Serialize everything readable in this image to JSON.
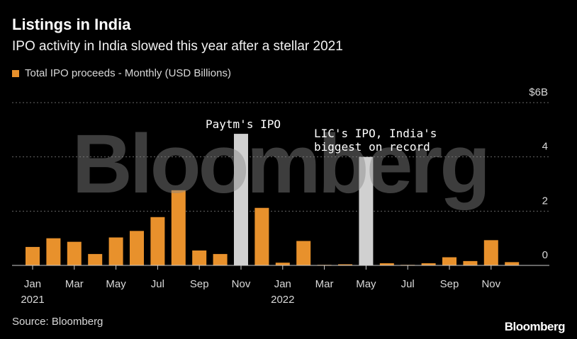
{
  "header": {
    "title": "Listings in India",
    "subtitle": "IPO activity in India slowed this year after a stellar 2021"
  },
  "legend": {
    "label": "Total IPO proceeds - Monthly (USD Billions)"
  },
  "source": "Source: Bloomberg",
  "brand": "Bloomberg",
  "watermark": "Bloomberg",
  "colors": {
    "bar": "#e8912c",
    "highlight": "#d0d0d0",
    "grid": "#666666",
    "axis": "#cccccc"
  },
  "chart_data": {
    "type": "bar",
    "categories": [
      "Jan 2021",
      "Feb 2021",
      "Mar 2021",
      "Apr 2021",
      "May 2021",
      "Jun 2021",
      "Jul 2021",
      "Aug 2021",
      "Sep 2021",
      "Oct 2021",
      "Nov 2021",
      "Dec 2021",
      "Jan 2022",
      "Feb 2022",
      "Mar 2022",
      "Apr 2022",
      "May 2022",
      "Jun 2022",
      "Jul 2022",
      "Aug 2022",
      "Sep 2022",
      "Oct 2022",
      "Nov 2022",
      "Dec 2022"
    ],
    "values": [
      0.68,
      1.0,
      0.87,
      0.42,
      1.03,
      1.27,
      1.78,
      2.77,
      0.55,
      0.42,
      4.85,
      2.12,
      0.1,
      0.9,
      0.02,
      0.04,
      4.0,
      0.08,
      0.02,
      0.08,
      0.3,
      0.16,
      0.93,
      0.12
    ],
    "highlighted": [
      "Nov 2021",
      "May 2022"
    ],
    "ylim": [
      0,
      6
    ],
    "yticks": [
      {
        "value": 0,
        "label": "0"
      },
      {
        "value": 2,
        "label": "2"
      },
      {
        "value": 4,
        "label": "4"
      },
      {
        "value": 6,
        "label": "$6B"
      }
    ],
    "xticks": [
      {
        "category": "Jan 2021",
        "label": "Jan",
        "sublabel": "2021"
      },
      {
        "category": "Mar 2021",
        "label": "Mar"
      },
      {
        "category": "May 2021",
        "label": "May"
      },
      {
        "category": "Jul 2021",
        "label": "Jul"
      },
      {
        "category": "Sep 2021",
        "label": "Sep"
      },
      {
        "category": "Nov 2021",
        "label": "Nov"
      },
      {
        "category": "Jan 2022",
        "label": "Jan",
        "sublabel": "2022"
      },
      {
        "category": "Mar 2022",
        "label": "Mar"
      },
      {
        "category": "May 2022",
        "label": "May"
      },
      {
        "category": "Jul 2022",
        "label": "Jul"
      },
      {
        "category": "Sep 2022",
        "label": "Sep"
      },
      {
        "category": "Nov 2022",
        "label": "Nov"
      }
    ],
    "annotations": [
      {
        "category": "Nov 2021",
        "lines": [
          "Paytm's IPO"
        ]
      },
      {
        "category": "May 2022",
        "lines": [
          "LIC's IPO, India's",
          "biggest on record"
        ]
      }
    ],
    "grid": true
  }
}
